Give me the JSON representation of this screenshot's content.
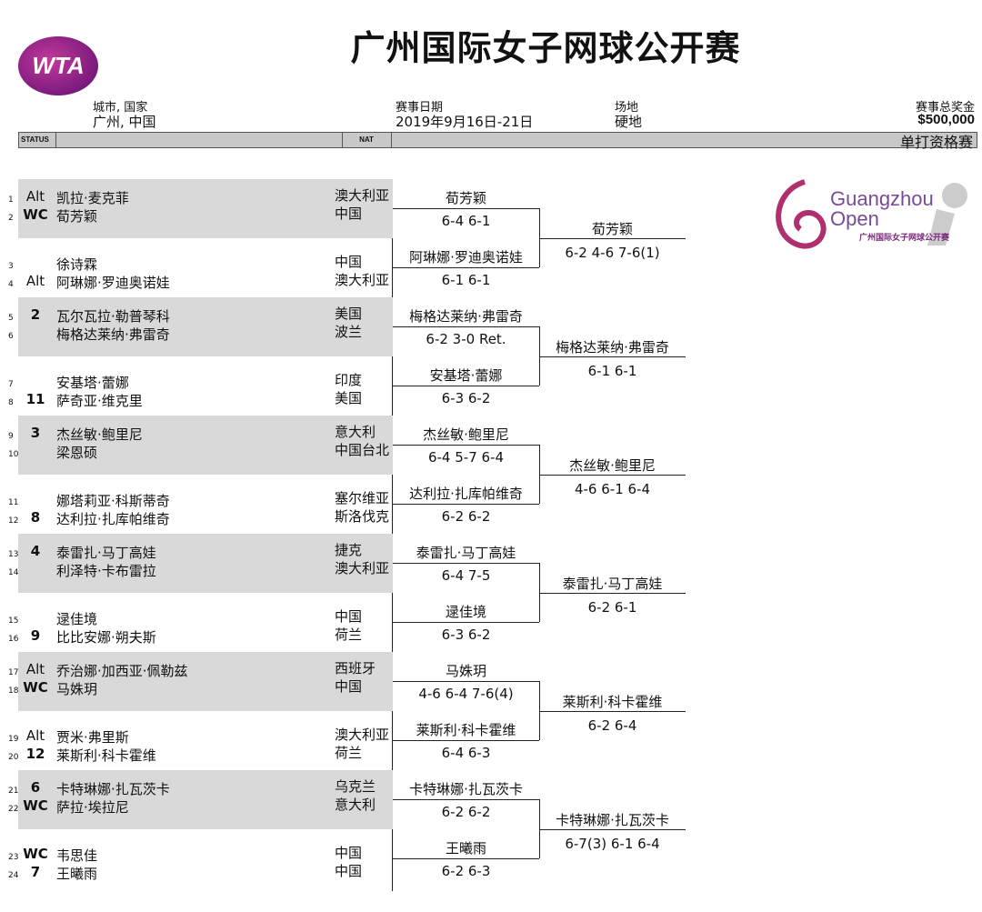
{
  "header": {
    "title": "广州国际女子网球公开赛",
    "logo_text": "WTA",
    "city_label": "城市, 国家",
    "city": "广州, 中国",
    "date_label": "赛事日期",
    "date": "2019年9月16日-21日",
    "surface_label": "场地",
    "surface": "硬地",
    "prize_label": "赛事总奖金",
    "prize": "$500,000"
  },
  "bar": {
    "status": "STATUS",
    "nat": "NAT",
    "event": "单打资格赛"
  },
  "sponsor_logo": {
    "line1": "Guangzhou",
    "line2": "Open",
    "line3": "广州国际女子网球公开赛"
  },
  "players": [
    {
      "n": "1",
      "status": "Alt",
      "name": "凯拉·麦克菲",
      "nat": "澳大利亚"
    },
    {
      "n": "2",
      "status": "WC",
      "name": "荀芳颖",
      "nat": "中国"
    },
    {
      "n": "3",
      "status": "",
      "name": "徐诗霖",
      "nat": "中国"
    },
    {
      "n": "4",
      "status": "Alt",
      "name": "阿琳娜·罗迪奥诺娃",
      "nat": "澳大利亚"
    },
    {
      "n": "5",
      "status": "2",
      "name": "瓦尔瓦拉·勒普琴科",
      "nat": "美国"
    },
    {
      "n": "6",
      "status": "",
      "name": "梅格达莱纳·弗雷奇",
      "nat": "波兰"
    },
    {
      "n": "7",
      "status": "",
      "name": "安基塔·蕾娜",
      "nat": "印度"
    },
    {
      "n": "8",
      "status": "11",
      "name": "萨奇亚·维克里",
      "nat": "美国"
    },
    {
      "n": "9",
      "status": "3",
      "name": "杰丝敏·鲍里尼",
      "nat": "意大利"
    },
    {
      "n": "10",
      "status": "",
      "name": "梁恩硕",
      "nat": "中国台北"
    },
    {
      "n": "11",
      "status": "",
      "name": "娜塔莉亚·科斯蒂奇",
      "nat": "塞尔维亚"
    },
    {
      "n": "12",
      "status": "8",
      "name": "达利拉·扎库帕维奇",
      "nat": "斯洛伐克"
    },
    {
      "n": "13",
      "status": "4",
      "name": "泰雷扎·马丁高娃",
      "nat": "捷克"
    },
    {
      "n": "14",
      "status": "",
      "name": "利泽特·卡布雷拉",
      "nat": "澳大利亚"
    },
    {
      "n": "15",
      "status": "",
      "name": "逯佳境",
      "nat": "中国"
    },
    {
      "n": "16",
      "status": "9",
      "name": "比比安娜·朔夫斯",
      "nat": "荷兰"
    },
    {
      "n": "17",
      "status": "Alt",
      "name": "乔治娜·加西亚·佩勒兹",
      "nat": "西班牙"
    },
    {
      "n": "18",
      "status": "WC",
      "name": "马姝玥",
      "nat": "中国"
    },
    {
      "n": "19",
      "status": "Alt",
      "name": "贾米·弗里斯",
      "nat": "澳大利亚"
    },
    {
      "n": "20",
      "status": "12",
      "name": "莱斯利·科卡霍维",
      "nat": "荷兰"
    },
    {
      "n": "21",
      "status": "6",
      "name": "卡特琳娜·扎瓦茨卡",
      "nat": "乌克兰"
    },
    {
      "n": "22",
      "status": "WC",
      "name": "萨拉·埃拉尼",
      "nat": "意大利"
    },
    {
      "n": "23",
      "status": "WC",
      "name": "韦思佳",
      "nat": "中国"
    },
    {
      "n": "24",
      "status": "7",
      "name": "王曦雨",
      "nat": "中国"
    }
  ],
  "round1": [
    {
      "winner": "荀芳颖",
      "score": "6-4 6-1"
    },
    {
      "winner": "阿琳娜·罗迪奥诺娃",
      "score": "6-1 6-1"
    },
    {
      "winner": "梅格达莱纳·弗雷奇",
      "score": "6-2 3-0 Ret."
    },
    {
      "winner": "安基塔·蕾娜",
      "score": "6-3 6-2"
    },
    {
      "winner": "杰丝敏·鲍里尼",
      "score": "6-4 5-7 6-4"
    },
    {
      "winner": "达利拉·扎库帕维奇",
      "score": "6-2 6-2"
    },
    {
      "winner": "泰雷扎·马丁高娃",
      "score": "6-4 7-5"
    },
    {
      "winner": "逯佳境",
      "score": "6-3 6-2"
    },
    {
      "winner": "马姝玥",
      "score": "4-6 6-4 7-6(4)"
    },
    {
      "winner": "莱斯利·科卡霍维",
      "score": "6-4 6-3"
    },
    {
      "winner": "卡特琳娜·扎瓦茨卡",
      "score": "6-2 6-2"
    },
    {
      "winner": "王曦雨",
      "score": "6-2 6-3"
    }
  ],
  "round2": [
    {
      "winner": "荀芳颖",
      "score": "6-2 4-6 7-6(1)"
    },
    {
      "winner": "梅格达莱纳·弗雷奇",
      "score": "6-1 6-1"
    },
    {
      "winner": "杰丝敏·鲍里尼",
      "score": "4-6 6-1 6-4"
    },
    {
      "winner": "泰雷扎·马丁高娃",
      "score": "6-2 6-1"
    },
    {
      "winner": "莱斯利·科卡霍维",
      "score": "6-2 6-4"
    },
    {
      "winner": "卡特琳娜·扎瓦茨卡",
      "score": "6-7(3) 6-1 6-4"
    }
  ]
}
